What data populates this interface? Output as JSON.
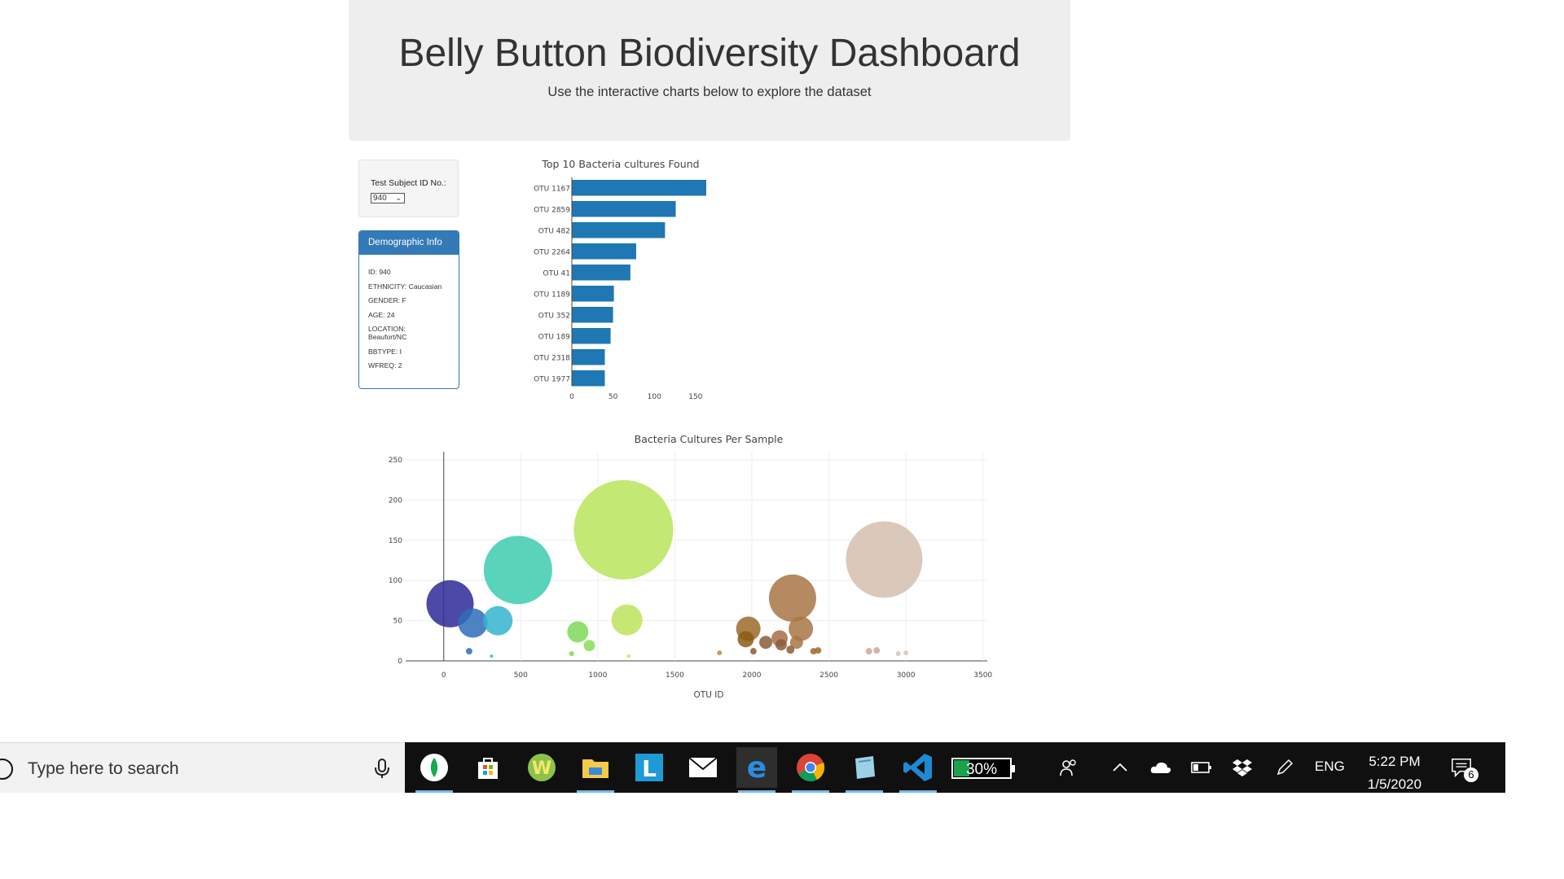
{
  "header": {
    "title": "Belly Button Biodiversity Dashboard",
    "subtitle": "Use the interactive charts below to explore the dataset"
  },
  "selector": {
    "label": "Test Subject ID No.:",
    "value": "940"
  },
  "demographics": {
    "title": "Demographic Info",
    "lines": [
      "ID: 940",
      "ETHNICITY: Caucasian",
      "GENDER: F",
      "AGE: 24",
      "LOCATION: Beaufort/NC",
      "BBTYPE: I",
      "WFREQ: 2"
    ]
  },
  "colors": {
    "bar": "#1f77b4",
    "panel": "#337ab7",
    "taskbar": "#101010"
  },
  "chart_data": [
    {
      "type": "bar",
      "orientation": "horizontal",
      "title": "Top 10 Bacteria cultures Found",
      "categories": [
        "OTU 1167",
        "OTU 2859",
        "OTU 482",
        "OTU 2264",
        "OTU 41",
        "OTU 1189",
        "OTU 352",
        "OTU 189",
        "OTU 2318",
        "OTU 1977"
      ],
      "values": [
        163,
        126,
        113,
        78,
        71,
        51,
        50,
        47,
        40,
        40
      ],
      "xticks": [
        "0",
        "50",
        "100",
        "150"
      ],
      "xlim": [
        0,
        163
      ]
    },
    {
      "type": "scatter",
      "subtype": "bubble",
      "title": "Bacteria Cultures Per Sample",
      "xlabel": "OTU ID",
      "xlim": [
        -300,
        3750
      ],
      "ylim": [
        0,
        255
      ],
      "xticks": [
        0,
        500,
        1000,
        1500,
        2000,
        2500,
        3000,
        3500
      ],
      "yticks": [
        0,
        50,
        100,
        150,
        200,
        250
      ],
      "grid": true,
      "points": [
        {
          "x": 41,
          "y": 71,
          "r": 29,
          "color": "#2d2a96"
        },
        {
          "x": 189,
          "y": 47,
          "r": 18,
          "color": "#2f6db8"
        },
        {
          "x": 352,
          "y": 50,
          "r": 18,
          "color": "#35b4ce"
        },
        {
          "x": 482,
          "y": 113,
          "r": 42,
          "color": "#3cccae"
        },
        {
          "x": 1167,
          "y": 163,
          "r": 61,
          "color": "#b8e45a"
        },
        {
          "x": 1189,
          "y": 51,
          "r": 19,
          "color": "#bde35c"
        },
        {
          "x": 870,
          "y": 36,
          "r": 13,
          "color": "#7ed957"
        },
        {
          "x": 945,
          "y": 19,
          "r": 7,
          "color": "#88dc5c"
        },
        {
          "x": 165,
          "y": 12,
          "r": 4,
          "color": "#2f6db8"
        },
        {
          "x": 310,
          "y": 6,
          "r": 2,
          "color": "#35b4ce"
        },
        {
          "x": 830,
          "y": 9,
          "r": 3,
          "color": "#7ed957"
        },
        {
          "x": 1200,
          "y": 6,
          "r": 2,
          "color": "#bde35c"
        },
        {
          "x": 2264,
          "y": 78,
          "r": 29,
          "color": "#a87545"
        },
        {
          "x": 2318,
          "y": 40,
          "r": 15,
          "color": "#a87545"
        },
        {
          "x": 1977,
          "y": 40,
          "r": 15,
          "color": "#9d6a2c"
        },
        {
          "x": 1960,
          "y": 27,
          "r": 10,
          "color": "#8a5d10"
        },
        {
          "x": 2090,
          "y": 23,
          "r": 8,
          "color": "#8c5a3a"
        },
        {
          "x": 2180,
          "y": 28,
          "r": 10,
          "color": "#a56f4a"
        },
        {
          "x": 2190,
          "y": 20,
          "r": 7,
          "color": "#8c5a3a"
        },
        {
          "x": 2290,
          "y": 23,
          "r": 8,
          "color": "#a87545"
        },
        {
          "x": 2250,
          "y": 14,
          "r": 5,
          "color": "#8c5a3a"
        },
        {
          "x": 2010,
          "y": 12,
          "r": 4,
          "color": "#8c5a3a"
        },
        {
          "x": 2400,
          "y": 12,
          "r": 4,
          "color": "#9d6a2c"
        },
        {
          "x": 2430,
          "y": 13,
          "r": 4,
          "color": "#9d6a2c"
        },
        {
          "x": 1790,
          "y": 10,
          "r": 3,
          "color": "#b89140"
        },
        {
          "x": 2859,
          "y": 126,
          "r": 47,
          "color": "#d4c0af"
        },
        {
          "x": 2760,
          "y": 12,
          "r": 4,
          "color": "#caa99a"
        },
        {
          "x": 2810,
          "y": 13,
          "r": 4,
          "color": "#caa99a"
        },
        {
          "x": 2950,
          "y": 9,
          "r": 3,
          "color": "#d8c6b8"
        },
        {
          "x": 3000,
          "y": 10,
          "r": 3,
          "color": "#d8c6b8"
        }
      ]
    }
  ],
  "taskbar": {
    "search_placeholder": "Type here to search",
    "apps": [
      "mongodb-icon",
      "store-icon",
      "w-app-icon",
      "file-explorer-icon",
      "l-app-icon",
      "mail-icon",
      "edge-icon",
      "chrome-icon",
      "notepad-icon",
      "vscode-icon"
    ],
    "battery": "30%",
    "language": "ENG",
    "time": "5:22 PM",
    "date": "1/5/2020",
    "notifications": "6"
  }
}
